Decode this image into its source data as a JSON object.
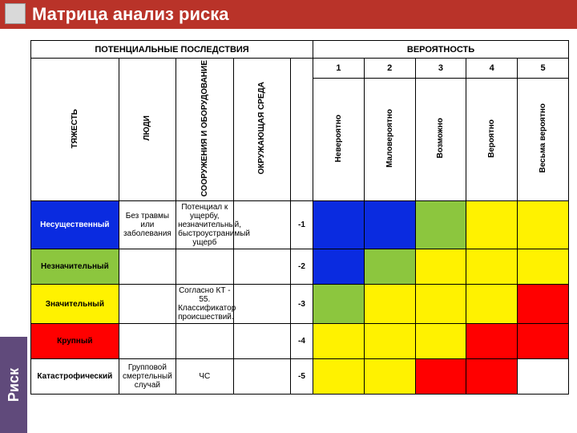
{
  "title": "Матрица анализ риска",
  "side_label": "Риск",
  "headers": {
    "consequences": "ПОТЕНЦИАЛЬНЫЕ ПОСЛЕДСТВИЯ",
    "probability": "ВЕРОЯТНОСТЬ",
    "severity_col": "ТЯЖЕСТЬ",
    "categories": [
      "ЛЮДИ",
      "СООРУЖЕНИЯ И ОБОРУДОВАНИЕ",
      "ОКРУЖАЮЩАЯ СРЕДА"
    ],
    "prob_nums": [
      "1",
      "2",
      "3",
      "4",
      "5"
    ],
    "prob_labels": [
      "Невероятно",
      "Маловероятно",
      "Возможно",
      "Вероятно",
      "Весьма вероятно"
    ]
  },
  "rows": [
    {
      "severity": "Несущественный",
      "cat0": "Без травмы или заболевания",
      "cat1": "Потенциал к ущербу, незначительный, быстроустранимый ущерб",
      "cat2": "",
      "num": "-1",
      "sev_bg": "#0a2be0",
      "sev_fg": "#ffffff"
    },
    {
      "severity": "Незначительный",
      "cat0": "",
      "cat1": "",
      "cat2": "",
      "num": "-2",
      "sev_bg": "#8cc63e",
      "sev_fg": "#000000"
    },
    {
      "severity": "Значительный",
      "cat0": "",
      "cat1": "Согласно КТ - 55. Классификатор происшествий.",
      "cat2": "",
      "num": "-3",
      "sev_bg": "#fff200",
      "sev_fg": "#000000"
    },
    {
      "severity": "Крупный",
      "cat0": "",
      "cat1": "",
      "cat2": "",
      "num": "-4",
      "sev_bg": "#ff0000",
      "sev_fg": "#000000"
    },
    {
      "severity": "Катастрофический",
      "cat0": "Групповой смертельный случай",
      "cat1": "ЧС",
      "cat2": "",
      "num": "-5",
      "sev_bg": "#ffffff",
      "sev_fg": "#000000"
    }
  ],
  "palette": {
    "blue": "#0a2be0",
    "green": "#8cc63e",
    "yellow": "#fff200",
    "red": "#ff0000",
    "white": "#ffffff"
  },
  "risk_grid": [
    [
      "blue",
      "blue",
      "green",
      "yellow",
      "yellow"
    ],
    [
      "blue",
      "green",
      "yellow",
      "yellow",
      "yellow"
    ],
    [
      "green",
      "yellow",
      "yellow",
      "yellow",
      "red"
    ],
    [
      "yellow",
      "yellow",
      "yellow",
      "red",
      "red"
    ],
    [
      "yellow",
      "yellow",
      "red",
      "red",
      "white"
    ]
  ],
  "style": {
    "header_bg": "#b93329",
    "header_fg": "#ffffff",
    "side_bg": "#604a7b",
    "border_color": "#000000",
    "font_family": "Arial, sans-serif",
    "title_fontsize": 22,
    "cell_fontsize": 10
  }
}
